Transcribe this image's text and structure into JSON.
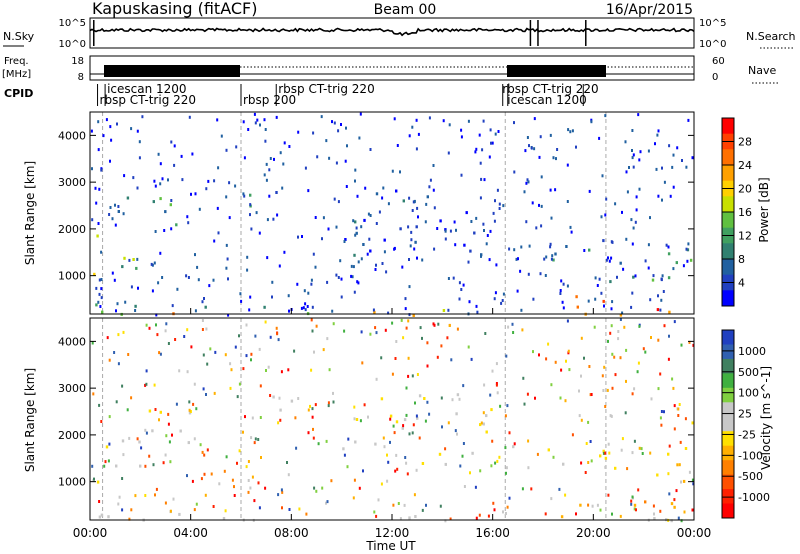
{
  "header": {
    "station": "Kapuskasing (fitACF)",
    "beam": "Beam 00",
    "date": "16/Apr/2015"
  },
  "top_panels": {
    "nsky_label": "N.Sky",
    "nsky_ticks": [
      "10^5",
      "10^0"
    ],
    "nsearch_label": "N.Search",
    "nsearch_ticks": [
      "10^5",
      "10^0"
    ],
    "freq_label_1": "Freq.",
    "freq_label_2": "[MHz]",
    "freq_ticks": [
      "18",
      "8"
    ],
    "nave_label": "Nave",
    "nave_ticks": [
      "60",
      "0"
    ],
    "cpid_label": "CPID",
    "cpid_labels": [
      {
        "text": "icescan 1200",
        "row": "upper",
        "start_hour": 0.6
      },
      {
        "text": "rbsp CT-trig 220",
        "row": "lower",
        "start_hour": 0.3
      },
      {
        "text": "rbsp 200",
        "row": "lower",
        "start_hour": 6.0
      },
      {
        "text": "rbsp CT-trig 220",
        "row": "upper",
        "start_hour": 7.4
      },
      {
        "text": "rbsp CT-trig 220",
        "row": "upper",
        "start_hour": 16.3
      },
      {
        "text": "icescan 1200",
        "row": "lower",
        "start_hour": 16.5
      }
    ],
    "cpid_boundaries_hours": [
      0.3,
      0.6,
      6.0,
      7.4,
      16.4,
      16.6,
      19.6
    ]
  },
  "power_panel": {
    "ylabel": "Slant Range [km]",
    "colorbar_label": "Power [dB]",
    "colorbar_ticks": [
      "28",
      "24",
      "20",
      "16",
      "12",
      "8",
      "4"
    ],
    "colors": [
      "#ff0000",
      "#ff4000",
      "#ff7000",
      "#ffa000",
      "#ffd000",
      "#c8e000",
      "#60c040",
      "#40a060",
      "#308070",
      "#2060a0",
      "#2040c0",
      "#0000ff"
    ]
  },
  "velocity_panel": {
    "ylabel": "Slant Range [km]",
    "colorbar_label": "Velocity [m s^-1]",
    "colorbar_ticks": [
      "1000",
      "500",
      "100",
      "25",
      "-25",
      "-100",
      "-500",
      "-1000"
    ],
    "colors": [
      "#2040c0",
      "#3060b0",
      "#408060",
      "#40b040",
      "#80d040",
      "#c8c8c8",
      "#c8c8c8",
      "#ffe000",
      "#ffb000",
      "#ff8000",
      "#ff5000",
      "#ff2000",
      "#ff0000"
    ],
    "ground_scatter_color": "#a0a0a0"
  },
  "x_axis": {
    "label": "Time UT",
    "ticks": [
      "00:00",
      "04:00",
      "08:00",
      "12:00",
      "16:00",
      "20:00",
      "00:00"
    ]
  },
  "chart_data": {
    "type": "heatmap",
    "title": "Kapuskasing (fitACF)",
    "subtitle": "Beam 00",
    "date": "16/Apr/2015",
    "x_range_hours": [
      0,
      24
    ],
    "ylim": [
      180,
      4500
    ],
    "y_ticks": [
      1000,
      2000,
      3000,
      4000
    ],
    "xlabel": "Time UT",
    "ylabel": "Slant Range [km]",
    "power_range_db": [
      0,
      30
    ],
    "velocity_range": [
      -1000,
      1000
    ],
    "dashed_time_lines_hours": [
      0.5,
      6.0,
      16.5,
      20.5
    ],
    "scatter_regions": [
      {
        "t0": 0.0,
        "t1": 2.5,
        "r0": 900,
        "r1": 1900,
        "power": 14,
        "velocity": -40
      },
      {
        "t0": 1.0,
        "t1": 4.0,
        "r0": 1800,
        "r1": 2700,
        "power": 10,
        "velocity": -30
      },
      {
        "t0": 5.0,
        "t1": 8.0,
        "r0": 2500,
        "r1": 2900,
        "power": 6,
        "velocity": -20
      },
      {
        "t0": 0.0,
        "t1": 8.0,
        "r0": 180,
        "r1": 450,
        "power": 12,
        "velocity": 60
      },
      {
        "t0": 10.0,
        "t1": 16.0,
        "r0": 1400,
        "r1": 2900,
        "power": 4,
        "velocity": -60
      },
      {
        "t0": 16.5,
        "t1": 20.5,
        "r0": 1300,
        "r1": 1800,
        "power": 8,
        "velocity": -30
      },
      {
        "t0": 18.0,
        "t1": 24.0,
        "r0": 180,
        "r1": 600,
        "power": 26,
        "velocity": -300
      },
      {
        "t0": 20.0,
        "t1": 24.0,
        "r0": 900,
        "r1": 1800,
        "power": 10,
        "velocity": -200
      },
      {
        "t0": 0.0,
        "t1": 24.0,
        "r0": 180,
        "r1": 300,
        "power": 18,
        "velocity": 10
      }
    ]
  }
}
